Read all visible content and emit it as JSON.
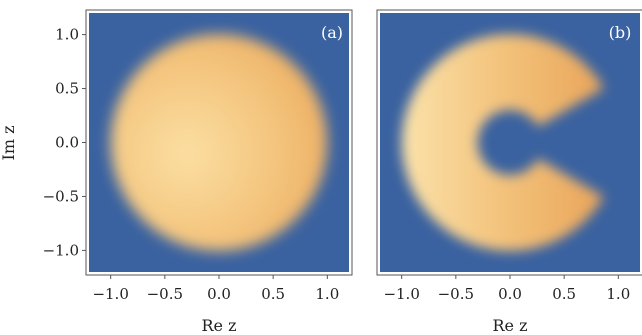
{
  "chart_data": [
    {
      "type": "heatmap",
      "panel_label": "(a)",
      "xlabel": "Re z",
      "ylabel": "Im z",
      "xlim": [
        -1.2,
        1.2
      ],
      "ylim": [
        -1.2,
        1.2
      ],
      "xticks": [
        "−1.0",
        "−0.5",
        "0.0",
        "0.5",
        "1.0"
      ],
      "xtick_values": [
        -1.0,
        -0.5,
        0.0,
        0.5,
        1.0
      ],
      "yticks": [
        "1.0",
        "0.5",
        "0.0",
        "−0.5",
        "−1.0"
      ],
      "ytick_values": [
        1.0,
        0.5,
        0.0,
        -0.5,
        -1.0
      ],
      "shape": "filled-disk",
      "disk_radius": 1.0,
      "background_color": "#3a62a0",
      "fill_color": "#f2c277"
    },
    {
      "type": "heatmap",
      "panel_label": "(b)",
      "xlabel": "Re z",
      "ylabel": "",
      "xlim": [
        -1.2,
        1.2
      ],
      "ylim": [
        -1.2,
        1.2
      ],
      "xticks": [
        "−1.0",
        "−0.5",
        "0.0",
        "0.5",
        "1.0"
      ],
      "xtick_values": [
        -1.0,
        -0.5,
        0.0,
        0.5,
        1.0
      ],
      "yticks": [],
      "ytick_values": [],
      "shape": "pac-man-annulus",
      "disk_radius": 1.0,
      "inner_radius": 0.3,
      "gap_angle_deg": 60,
      "background_color": "#3a62a0",
      "fill_color": "#f2c277"
    }
  ]
}
